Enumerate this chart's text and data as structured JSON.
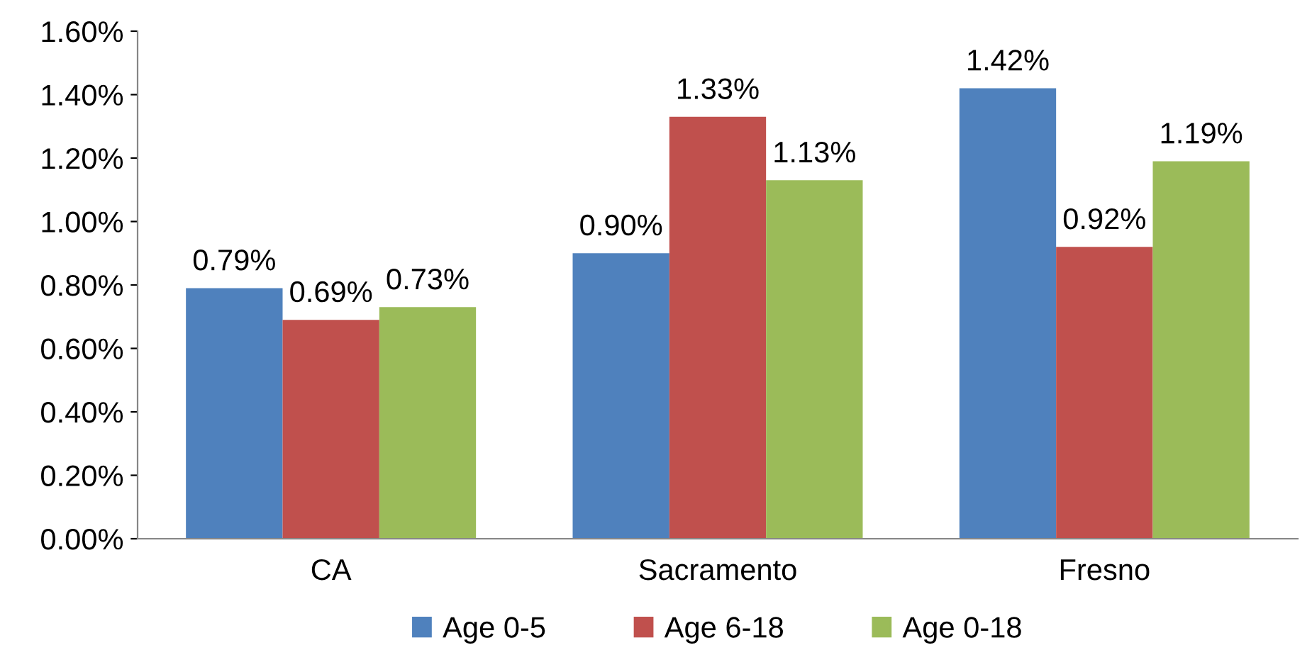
{
  "chart_data": {
    "type": "bar",
    "categories": [
      "CA",
      "Sacramento",
      "Fresno"
    ],
    "series": [
      {
        "name": "Age 0-5",
        "color": "#4f81bd",
        "values": [
          0.79,
          0.9,
          1.42
        ],
        "value_labels": [
          "0.79%",
          "0.90%",
          "1.42%"
        ]
      },
      {
        "name": "Age 6-18",
        "color": "#c0504d",
        "values": [
          0.69,
          1.33,
          0.92
        ],
        "value_labels": [
          "0.69%",
          "1.33%",
          "0.92%"
        ]
      },
      {
        "name": "Age 0-18",
        "color": "#9bbb59",
        "values": [
          0.73,
          1.13,
          1.19
        ],
        "value_labels": [
          "0.73%",
          "1.13%",
          "1.19%"
        ]
      }
    ],
    "ylim": [
      0,
      1.6
    ],
    "yticks": [
      {
        "value": 0,
        "label": "0.00%"
      },
      {
        "value": 0.2,
        "label": "0.20%"
      },
      {
        "value": 0.4,
        "label": "0.40%"
      },
      {
        "value": 0.6,
        "label": "0.60%"
      },
      {
        "value": 0.8,
        "label": "0.80%"
      },
      {
        "value": 1.0,
        "label": "1.00%"
      },
      {
        "value": 1.2,
        "label": "1.20%"
      },
      {
        "value": 1.4,
        "label": "1.40%"
      },
      {
        "value": 1.6,
        "label": "1.60%"
      }
    ],
    "grid": false,
    "legend": "bottom"
  }
}
